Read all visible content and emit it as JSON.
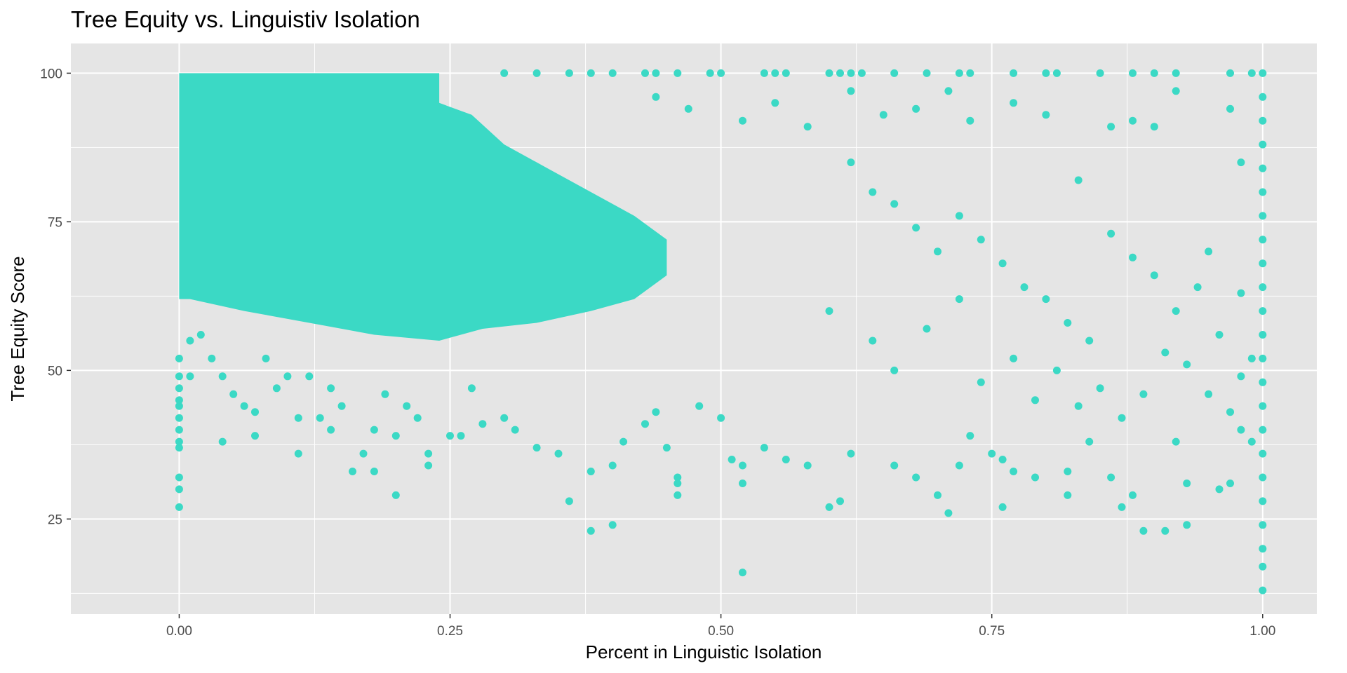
{
  "chart_data": {
    "type": "scatter",
    "title": "Tree Equity vs. Linguistiv Isolation",
    "xlabel": "Percent in Linguistic Isolation",
    "ylabel": "Tree Equity Score",
    "xlim": [
      -0.1,
      1.05
    ],
    "ylim": [
      9,
      105
    ],
    "x_ticks": [
      0,
      0.25,
      0.5,
      0.75,
      1.0
    ],
    "x_tick_labels": [
      "0.00",
      "0.25",
      "0.50",
      "0.75",
      "1.00"
    ],
    "y_ticks": [
      25,
      50,
      75,
      100
    ],
    "y_tick_labels": [
      "25",
      "50",
      "75",
      "100"
    ],
    "grid": true,
    "legend": "none",
    "point_color": "#3BD9C5",
    "panel_color": "#E5E5E5",
    "grid_color": "#FFFFFF",
    "series": [
      {
        "values": [
          {
            "x": 0.0,
            "y": 27
          },
          {
            "x": 0.0,
            "y": 30
          },
          {
            "x": 0.0,
            "y": 32
          },
          {
            "x": 0.0,
            "y": 37
          },
          {
            "x": 0.0,
            "y": 38
          },
          {
            "x": 0.0,
            "y": 40
          },
          {
            "x": 0.0,
            "y": 42
          },
          {
            "x": 0.0,
            "y": 44
          },
          {
            "x": 0.0,
            "y": 45
          },
          {
            "x": 0.0,
            "y": 47
          },
          {
            "x": 0.0,
            "y": 49
          },
          {
            "x": 0.0,
            "y": 52
          },
          {
            "x": 0.01,
            "y": 55
          },
          {
            "x": 0.01,
            "y": 49
          },
          {
            "x": 0.02,
            "y": 56
          },
          {
            "x": 0.03,
            "y": 52
          },
          {
            "x": 0.04,
            "y": 49
          },
          {
            "x": 0.04,
            "y": 38
          },
          {
            "x": 0.05,
            "y": 46
          },
          {
            "x": 0.06,
            "y": 44
          },
          {
            "x": 0.07,
            "y": 43
          },
          {
            "x": 0.07,
            "y": 39
          },
          {
            "x": 0.08,
            "y": 52
          },
          {
            "x": 0.09,
            "y": 47
          },
          {
            "x": 0.1,
            "y": 49
          },
          {
            "x": 0.11,
            "y": 42
          },
          {
            "x": 0.11,
            "y": 36
          },
          {
            "x": 0.12,
            "y": 49
          },
          {
            "x": 0.13,
            "y": 42
          },
          {
            "x": 0.14,
            "y": 47
          },
          {
            "x": 0.14,
            "y": 40
          },
          {
            "x": 0.15,
            "y": 44
          },
          {
            "x": 0.16,
            "y": 33
          },
          {
            "x": 0.17,
            "y": 36
          },
          {
            "x": 0.18,
            "y": 40
          },
          {
            "x": 0.18,
            "y": 33
          },
          {
            "x": 0.19,
            "y": 46
          },
          {
            "x": 0.2,
            "y": 39
          },
          {
            "x": 0.2,
            "y": 29
          },
          {
            "x": 0.21,
            "y": 44
          },
          {
            "x": 0.22,
            "y": 42
          },
          {
            "x": 0.23,
            "y": 36
          },
          {
            "x": 0.23,
            "y": 34
          },
          {
            "x": 0.25,
            "y": 39
          },
          {
            "x": 0.26,
            "y": 39
          },
          {
            "x": 0.27,
            "y": 47
          },
          {
            "x": 0.28,
            "y": 41
          },
          {
            "x": 0.3,
            "y": 42
          },
          {
            "x": 0.31,
            "y": 40
          },
          {
            "x": 0.33,
            "y": 37
          },
          {
            "x": 0.35,
            "y": 36
          },
          {
            "x": 0.36,
            "y": 28
          },
          {
            "x": 0.38,
            "y": 33
          },
          {
            "x": 0.38,
            "y": 23
          },
          {
            "x": 0.4,
            "y": 24
          },
          {
            "x": 0.4,
            "y": 34
          },
          {
            "x": 0.41,
            "y": 38
          },
          {
            "x": 0.43,
            "y": 41
          },
          {
            "x": 0.44,
            "y": 43
          },
          {
            "x": 0.45,
            "y": 37
          },
          {
            "x": 0.46,
            "y": 31
          },
          {
            "x": 0.46,
            "y": 29
          },
          {
            "x": 0.46,
            "y": 32
          },
          {
            "x": 0.48,
            "y": 44
          },
          {
            "x": 0.5,
            "y": 42
          },
          {
            "x": 0.51,
            "y": 35
          },
          {
            "x": 0.52,
            "y": 16
          },
          {
            "x": 0.52,
            "y": 34
          },
          {
            "x": 0.52,
            "y": 31
          },
          {
            "x": 0.54,
            "y": 37
          },
          {
            "x": 0.56,
            "y": 35
          },
          {
            "x": 0.58,
            "y": 34
          },
          {
            "x": 0.6,
            "y": 27
          },
          {
            "x": 0.61,
            "y": 28
          },
          {
            "x": 0.62,
            "y": 36
          },
          {
            "x": 0.66,
            "y": 34
          },
          {
            "x": 0.68,
            "y": 32
          },
          {
            "x": 0.7,
            "y": 29
          },
          {
            "x": 0.71,
            "y": 26
          },
          {
            "x": 0.72,
            "y": 34
          },
          {
            "x": 0.73,
            "y": 39
          },
          {
            "x": 0.75,
            "y": 36
          },
          {
            "x": 0.76,
            "y": 27
          },
          {
            "x": 0.76,
            "y": 35
          },
          {
            "x": 0.77,
            "y": 33
          },
          {
            "x": 0.79,
            "y": 32
          },
          {
            "x": 0.82,
            "y": 33
          },
          {
            "x": 0.82,
            "y": 29
          },
          {
            "x": 0.84,
            "y": 38
          },
          {
            "x": 0.86,
            "y": 32
          },
          {
            "x": 0.87,
            "y": 27
          },
          {
            "x": 0.88,
            "y": 29
          },
          {
            "x": 0.89,
            "y": 23
          },
          {
            "x": 0.91,
            "y": 23
          },
          {
            "x": 0.92,
            "y": 38
          },
          {
            "x": 0.93,
            "y": 24
          },
          {
            "x": 0.93,
            "y": 31
          },
          {
            "x": 0.96,
            "y": 30
          },
          {
            "x": 0.97,
            "y": 31
          },
          {
            "x": 0.98,
            "y": 40
          },
          {
            "x": 0.99,
            "y": 38
          },
          {
            "x": 0.3,
            "y": 100
          },
          {
            "x": 0.33,
            "y": 100
          },
          {
            "x": 0.36,
            "y": 100
          },
          {
            "x": 0.38,
            "y": 100
          },
          {
            "x": 0.4,
            "y": 100
          },
          {
            "x": 0.43,
            "y": 100
          },
          {
            "x": 0.44,
            "y": 100
          },
          {
            "x": 0.46,
            "y": 100
          },
          {
            "x": 0.49,
            "y": 100
          },
          {
            "x": 0.5,
            "y": 100
          },
          {
            "x": 0.54,
            "y": 100
          },
          {
            "x": 0.55,
            "y": 100
          },
          {
            "x": 0.56,
            "y": 100
          },
          {
            "x": 0.6,
            "y": 100
          },
          {
            "x": 0.61,
            "y": 100
          },
          {
            "x": 0.62,
            "y": 100
          },
          {
            "x": 0.63,
            "y": 100
          },
          {
            "x": 0.66,
            "y": 100
          },
          {
            "x": 0.69,
            "y": 100
          },
          {
            "x": 0.72,
            "y": 100
          },
          {
            "x": 0.73,
            "y": 100
          },
          {
            "x": 0.77,
            "y": 100
          },
          {
            "x": 0.8,
            "y": 100
          },
          {
            "x": 0.81,
            "y": 100
          },
          {
            "x": 0.85,
            "y": 100
          },
          {
            "x": 0.88,
            "y": 100
          },
          {
            "x": 0.9,
            "y": 100
          },
          {
            "x": 0.92,
            "y": 100
          },
          {
            "x": 0.97,
            "y": 100
          },
          {
            "x": 0.99,
            "y": 100
          },
          {
            "x": 0.44,
            "y": 96
          },
          {
            "x": 0.47,
            "y": 94
          },
          {
            "x": 0.52,
            "y": 92
          },
          {
            "x": 0.55,
            "y": 95
          },
          {
            "x": 0.58,
            "y": 91
          },
          {
            "x": 0.62,
            "y": 97
          },
          {
            "x": 0.65,
            "y": 93
          },
          {
            "x": 0.68,
            "y": 94
          },
          {
            "x": 0.71,
            "y": 97
          },
          {
            "x": 0.73,
            "y": 92
          },
          {
            "x": 0.77,
            "y": 95
          },
          {
            "x": 0.8,
            "y": 93
          },
          {
            "x": 0.83,
            "y": 82
          },
          {
            "x": 0.86,
            "y": 91
          },
          {
            "x": 0.88,
            "y": 92
          },
          {
            "x": 0.9,
            "y": 91
          },
          {
            "x": 0.92,
            "y": 97
          },
          {
            "x": 0.95,
            "y": 70
          },
          {
            "x": 0.97,
            "y": 94
          },
          {
            "x": 0.98,
            "y": 85
          },
          {
            "x": 0.62,
            "y": 85
          },
          {
            "x": 0.64,
            "y": 80
          },
          {
            "x": 0.66,
            "y": 78
          },
          {
            "x": 0.68,
            "y": 74
          },
          {
            "x": 0.7,
            "y": 70
          },
          {
            "x": 0.72,
            "y": 76
          },
          {
            "x": 0.74,
            "y": 72
          },
          {
            "x": 0.76,
            "y": 68
          },
          {
            "x": 0.78,
            "y": 64
          },
          {
            "x": 0.8,
            "y": 62
          },
          {
            "x": 0.82,
            "y": 58
          },
          {
            "x": 0.84,
            "y": 55
          },
          {
            "x": 0.86,
            "y": 73
          },
          {
            "x": 0.88,
            "y": 69
          },
          {
            "x": 0.9,
            "y": 66
          },
          {
            "x": 0.92,
            "y": 60
          },
          {
            "x": 0.94,
            "y": 64
          },
          {
            "x": 0.96,
            "y": 56
          },
          {
            "x": 0.98,
            "y": 63
          },
          {
            "x": 0.99,
            "y": 52
          },
          {
            "x": 0.6,
            "y": 60
          },
          {
            "x": 0.64,
            "y": 55
          },
          {
            "x": 0.66,
            "y": 50
          },
          {
            "x": 0.69,
            "y": 57
          },
          {
            "x": 0.72,
            "y": 62
          },
          {
            "x": 0.74,
            "y": 48
          },
          {
            "x": 0.77,
            "y": 52
          },
          {
            "x": 0.79,
            "y": 45
          },
          {
            "x": 0.81,
            "y": 50
          },
          {
            "x": 0.83,
            "y": 44
          },
          {
            "x": 0.85,
            "y": 47
          },
          {
            "x": 0.87,
            "y": 42
          },
          {
            "x": 0.89,
            "y": 46
          },
          {
            "x": 0.91,
            "y": 53
          },
          {
            "x": 0.93,
            "y": 51
          },
          {
            "x": 0.95,
            "y": 46
          },
          {
            "x": 0.97,
            "y": 43
          },
          {
            "x": 0.98,
            "y": 49
          },
          {
            "x": 1.0,
            "y": 13
          },
          {
            "x": 1.0,
            "y": 17
          },
          {
            "x": 1.0,
            "y": 20
          },
          {
            "x": 1.0,
            "y": 24
          },
          {
            "x": 1.0,
            "y": 28
          },
          {
            "x": 1.0,
            "y": 32
          },
          {
            "x": 1.0,
            "y": 36
          },
          {
            "x": 1.0,
            "y": 40
          },
          {
            "x": 1.0,
            "y": 44
          },
          {
            "x": 1.0,
            "y": 48
          },
          {
            "x": 1.0,
            "y": 52
          },
          {
            "x": 1.0,
            "y": 56
          },
          {
            "x": 1.0,
            "y": 60
          },
          {
            "x": 1.0,
            "y": 64
          },
          {
            "x": 1.0,
            "y": 68
          },
          {
            "x": 1.0,
            "y": 72
          },
          {
            "x": 1.0,
            "y": 76
          },
          {
            "x": 1.0,
            "y": 80
          },
          {
            "x": 1.0,
            "y": 84
          },
          {
            "x": 1.0,
            "y": 88
          },
          {
            "x": 1.0,
            "y": 92
          },
          {
            "x": 1.0,
            "y": 96
          },
          {
            "x": 1.0,
            "y": 100
          }
        ]
      }
    ]
  }
}
